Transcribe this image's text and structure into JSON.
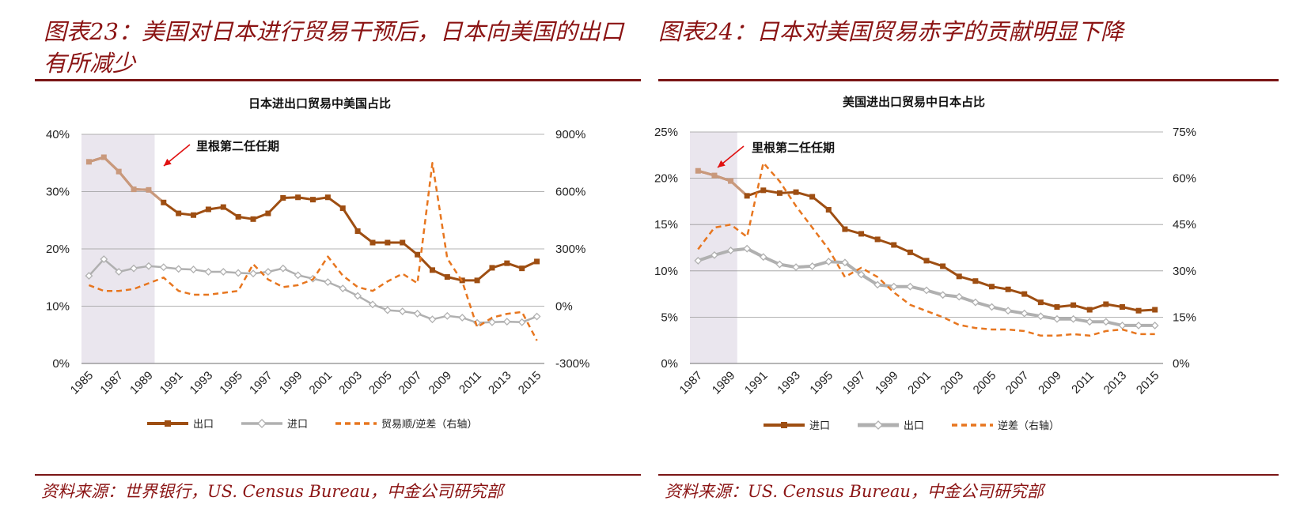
{
  "panels": [
    {
      "title": "图表23：美国对日本进行贸易干预后，日本向美国的出口有所减少",
      "source": "资料来源：世界银行，US. Census Bureau，中金公司研究部"
    },
    {
      "title": "图表24：日本对美国贸易赤字的贡献明显下降",
      "source": "资料来源：US. Census Bureau，中金公司研究部"
    }
  ],
  "colors": {
    "dark_brown": "#9e4e12",
    "gray": "#b0b0b0",
    "orange": "#e7761f",
    "shade": "#eae6ee",
    "arrow": "#e01010",
    "light_brown": "#c9997c"
  },
  "chart_data": [
    {
      "type": "line",
      "title": "日本进出口贸易中美国占比",
      "x": [
        1985,
        1986,
        1987,
        1988,
        1989,
        1990,
        1991,
        1992,
        1993,
        1994,
        1995,
        1996,
        1997,
        1998,
        1999,
        2000,
        2001,
        2002,
        2003,
        2004,
        2005,
        2006,
        2007,
        2008,
        2009,
        2010,
        2011,
        2012,
        2013,
        2014,
        2015
      ],
      "x_tick_labels": [
        "1985",
        "1987",
        "1989",
        "1991",
        "1993",
        "1995",
        "1997",
        "1999",
        "2001",
        "2003",
        "2005",
        "2007",
        "2009",
        "2011",
        "2013",
        "2015"
      ],
      "y_left": {
        "range": [
          0,
          40
        ],
        "ticks": [
          "0%",
          "10%",
          "20%",
          "30%",
          "40%"
        ]
      },
      "y_right": {
        "range": [
          -300,
          900
        ],
        "ticks": [
          "-300%",
          "0%",
          "300%",
          "600%",
          "900%"
        ]
      },
      "shaded_range": [
        1985,
        1989.4
      ],
      "annotation": "里根第二任任期",
      "legend_position": "bottom",
      "grid": true,
      "series": [
        {
          "name": "出口",
          "axis": "left",
          "style": "solid-square",
          "values": [
            35.2,
            36.0,
            33.5,
            30.4,
            30.3,
            28.1,
            26.2,
            25.9,
            26.9,
            27.3,
            25.6,
            25.2,
            26.2,
            28.9,
            29.0,
            28.6,
            29.0,
            27.1,
            23.1,
            21.1,
            21.1,
            21.1,
            19.0,
            16.3,
            15.1,
            14.5,
            14.5,
            16.7,
            17.5,
            16.6,
            17.8
          ]
        },
        {
          "name": "进口",
          "axis": "left",
          "style": "solid-diamond",
          "values": [
            15.3,
            18.2,
            16.0,
            16.6,
            17.0,
            16.8,
            16.5,
            16.4,
            16.0,
            16.0,
            15.8,
            15.7,
            16.0,
            16.6,
            15.4,
            14.8,
            14.2,
            13.1,
            11.8,
            10.3,
            9.3,
            9.1,
            8.7,
            7.7,
            8.3,
            8.0,
            7.1,
            7.2,
            7.3,
            7.2,
            8.2
          ]
        },
        {
          "name": "贸易顺/逆差（右轴）",
          "axis": "right",
          "style": "dashed",
          "values": [
            110,
            80,
            80,
            90,
            120,
            150,
            80,
            60,
            60,
            70,
            80,
            220,
            140,
            100,
            110,
            140,
            260,
            160,
            100,
            80,
            130,
            170,
            120,
            750,
            250,
            130,
            -110,
            -60,
            -40,
            -30,
            -180
          ]
        }
      ]
    },
    {
      "type": "line",
      "title": "美国进出口贸易中日本占比",
      "x": [
        1987,
        1988,
        1989,
        1990,
        1991,
        1992,
        1993,
        1994,
        1995,
        1996,
        1997,
        1998,
        1999,
        2000,
        2001,
        2002,
        2003,
        2004,
        2005,
        2006,
        2007,
        2008,
        2009,
        2010,
        2011,
        2012,
        2013,
        2014,
        2015
      ],
      "x_tick_labels": [
        "1987",
        "1989",
        "1991",
        "1993",
        "1995",
        "1997",
        "1999",
        "2001",
        "2003",
        "2005",
        "2007",
        "2009",
        "2011",
        "2013",
        "2015"
      ],
      "y_left": {
        "range": [
          0,
          25
        ],
        "ticks": [
          "0%",
          "5%",
          "10%",
          "15%",
          "20%",
          "25%"
        ]
      },
      "y_right": {
        "range": [
          0,
          75
        ],
        "ticks": [
          "0%",
          "15%",
          "30%",
          "45%",
          "60%",
          "75%"
        ]
      },
      "shaded_range": [
        1987,
        1989.4
      ],
      "annotation": "里根第二任任期",
      "legend_position": "bottom",
      "grid": true,
      "series": [
        {
          "name": "进口",
          "axis": "left",
          "style": "solid-square",
          "values": [
            20.8,
            20.3,
            19.7,
            18.1,
            18.7,
            18.4,
            18.5,
            18.0,
            16.6,
            14.5,
            14.0,
            13.4,
            12.8,
            12.0,
            11.1,
            10.5,
            9.4,
            8.9,
            8.3,
            8.0,
            7.5,
            6.6,
            6.1,
            6.3,
            5.8,
            6.4,
            6.1,
            5.7,
            5.8
          ]
        },
        {
          "name": "出口",
          "axis": "left",
          "style": "solid-diamond-thick",
          "values": [
            11.1,
            11.7,
            12.2,
            12.4,
            11.5,
            10.7,
            10.4,
            10.5,
            11.0,
            10.9,
            9.6,
            8.5,
            8.3,
            8.3,
            7.9,
            7.4,
            7.2,
            6.6,
            6.1,
            5.7,
            5.4,
            5.1,
            4.8,
            4.8,
            4.5,
            4.5,
            4.1,
            4.1,
            4.1
          ]
        },
        {
          "name": "逆差（右轴）",
          "axis": "right",
          "style": "dashed",
          "values": [
            37,
            44,
            45,
            41,
            65,
            59,
            51,
            44,
            37,
            28,
            31,
            28,
            23,
            19,
            17,
            15,
            12.5,
            11.5,
            11,
            11,
            10.5,
            9,
            9,
            9.5,
            9,
            10.5,
            11,
            9.5,
            9.5
          ]
        }
      ]
    }
  ]
}
